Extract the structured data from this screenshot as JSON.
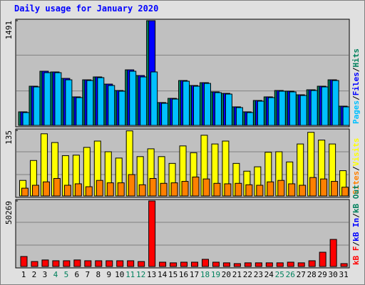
{
  "chart_data": [
    {
      "type": "bar",
      "title": "Daily usage for January 2020",
      "categories": [
        "1",
        "2",
        "3",
        "4",
        "5",
        "6",
        "7",
        "8",
        "9",
        "10",
        "11",
        "12",
        "13",
        "14",
        "15",
        "16",
        "17",
        "18",
        "19",
        "20",
        "21",
        "22",
        "23",
        "24",
        "25",
        "26",
        "27",
        "28",
        "29",
        "30",
        "31"
      ],
      "category_label_colors": [
        "#000000",
        "#000000",
        "#000000",
        "#00805c",
        "#00805c",
        "#000000",
        "#000000",
        "#000000",
        "#000000",
        "#000000",
        "#00805c",
        "#00805c",
        "#000000",
        "#000000",
        "#000000",
        "#000000",
        "#000000",
        "#00805c",
        "#00805c",
        "#000000",
        "#000000",
        "#000000",
        "#000000",
        "#000000",
        "#00805c",
        "#00805c",
        "#000000",
        "#000000",
        "#000000",
        "#000000",
        "#000000"
      ],
      "legend_separator": "/",
      "series": [
        {
          "name": "Pages",
          "color": "#00c0ff",
          "values": [
            183,
            548,
            751,
            751,
            649,
            396,
            639,
            680,
            568,
            487,
            771,
            690,
            761,
            315,
            375,
            629,
            558,
            598,
            467,
            446,
            254,
            183,
            345,
            396,
            487,
            477,
            426,
            497,
            548,
            639,
            264
          ]
        },
        {
          "name": "Files",
          "color": "#0000ff",
          "values": [
            193,
            558,
            771,
            761,
            669,
            406,
            649,
            690,
            588,
            497,
            791,
            710,
            1491,
            325,
            385,
            639,
            568,
            608,
            477,
            456,
            264,
            193,
            355,
            406,
            497,
            487,
            436,
            507,
            558,
            649,
            274
          ]
        },
        {
          "name": "Hits",
          "color": "#00805c",
          "values": [
            193,
            558,
            771,
            761,
            669,
            406,
            649,
            690,
            588,
            497,
            791,
            710,
            1491,
            325,
            385,
            639,
            568,
            608,
            477,
            456,
            264,
            193,
            355,
            406,
            497,
            487,
            436,
            507,
            558,
            649,
            274
          ]
        }
      ],
      "ylim": [
        0,
        1491
      ],
      "yticks": [
        1491
      ]
    },
    {
      "type": "bar",
      "legend_separator": "/",
      "series": [
        {
          "name": "Sites",
          "color": "#ff8000",
          "values": [
            16,
            22,
            29,
            36,
            22,
            25,
            19,
            32,
            27,
            27,
            44,
            23,
            36,
            26,
            27,
            30,
            39,
            35,
            26,
            25,
            26,
            23,
            22,
            29,
            32,
            25,
            22,
            38,
            35,
            30,
            18
          ]
        },
        {
          "name": "Visits",
          "color": "#ffff00",
          "values": [
            32,
            73,
            128,
            110,
            83,
            84,
            100,
            113,
            91,
            78,
            134,
            81,
            97,
            81,
            67,
            103,
            89,
            125,
            107,
            113,
            67,
            51,
            60,
            90,
            91,
            70,
            107,
            131,
            115,
            107,
            52
          ]
        }
      ],
      "ylim": [
        0,
        135
      ],
      "yticks": [
        135
      ]
    },
    {
      "type": "bar",
      "legend_separator": "/",
      "series": [
        {
          "name": "kB F",
          "color": "#ff0000",
          "values": [
            7650,
            3800,
            5000,
            4400,
            4400,
            5000,
            4400,
            4400,
            4400,
            4400,
            4400,
            3800,
            50269,
            3300,
            2800,
            3300,
            3300,
            5500,
            3300,
            2800,
            2200,
            2800,
            2800,
            2800,
            2800,
            3300,
            2800,
            4400,
            10930,
            20760,
            2200
          ]
        }
      ],
      "legend_extra": [
        {
          "name": "kB In",
          "color": "#0000ff"
        },
        {
          "name": "kB Out",
          "color": "#00805c"
        }
      ],
      "ylim": [
        0,
        50269
      ],
      "yticks": [
        50269
      ]
    }
  ]
}
